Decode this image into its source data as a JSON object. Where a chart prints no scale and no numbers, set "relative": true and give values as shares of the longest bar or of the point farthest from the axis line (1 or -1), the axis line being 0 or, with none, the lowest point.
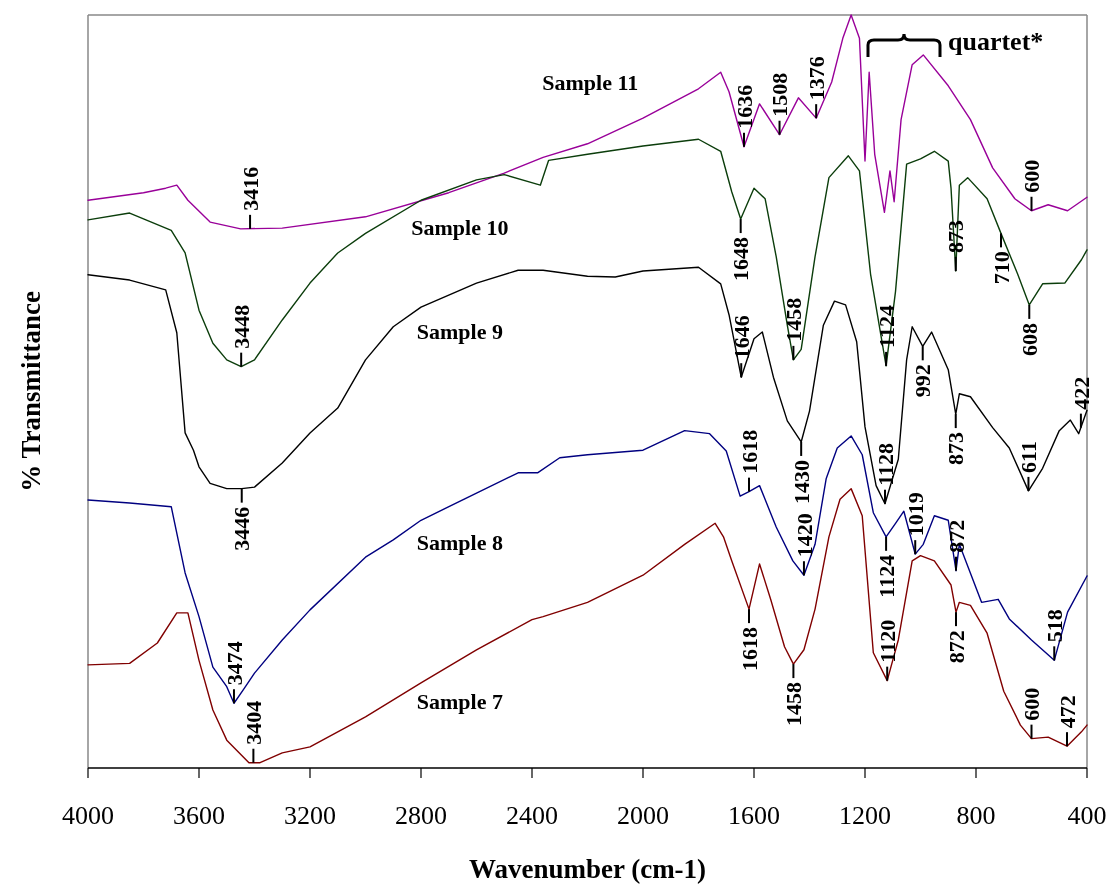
{
  "chart_data": {
    "type": "line",
    "relative": true,
    "xlabel": "Wavenumber (cm-1)",
    "ylabel": "% Transmittance",
    "xlim": [
      4000,
      400
    ],
    "xticks": [
      4000,
      3600,
      3200,
      2800,
      2400,
      2000,
      1600,
      1200,
      800,
      400
    ],
    "legend": false,
    "grid": false,
    "marker": "none",
    "line_style": "solid",
    "series": [
      {
        "name": "Sample 11",
        "color": "#990099",
        "x": [
          4000,
          3800,
          3720,
          3680,
          3640,
          3560,
          3450,
          3300,
          3000,
          2700,
          2500,
          2360,
          2200,
          2000,
          1800,
          1720,
          1690,
          1636,
          1580,
          1508,
          1440,
          1376,
          1320,
          1280,
          1250,
          1220,
          1200,
          1185,
          1165,
          1130,
          1110,
          1095,
          1070,
          1030,
          990,
          900,
          820,
          740,
          660,
          600,
          540,
          470,
          400
        ],
        "values": [
          0.754,
          0.764,
          0.77,
          0.774,
          0.754,
          0.725,
          0.716,
          0.717,
          0.732,
          0.764,
          0.79,
          0.811,
          0.829,
          0.863,
          0.902,
          0.924,
          0.898,
          0.825,
          0.882,
          0.841,
          0.89,
          0.863,
          0.911,
          0.969,
          1,
          0.969,
          0.806,
          0.924,
          0.815,
          0.738,
          0.793,
          0.752,
          0.861,
          0.934,
          0.947,
          0.906,
          0.861,
          0.797,
          0.756,
          0.74,
          0.748,
          0.74,
          0.758
        ]
      },
      {
        "name": "Sample 10",
        "color": "#0b3d0b",
        "x": [
          4000,
          3850,
          3700,
          3650,
          3600,
          3550,
          3500,
          3448,
          3400,
          3300,
          3200,
          3100,
          3000,
          2800,
          2600,
          2500,
          2370,
          2340,
          2200,
          2000,
          1800,
          1720,
          1680,
          1648,
          1600,
          1560,
          1520,
          1480,
          1458,
          1430,
          1380,
          1330,
          1260,
          1220,
          1180,
          1124,
          1090,
          1050,
          1000,
          950,
          900,
          890,
          873,
          860,
          830,
          760,
          710,
          650,
          608,
          560,
          480,
          420,
          400
        ],
        "values": [
          0.728,
          0.737,
          0.714,
          0.684,
          0.608,
          0.564,
          0.542,
          0.533,
          0.542,
          0.595,
          0.644,
          0.684,
          0.71,
          0.754,
          0.781,
          0.788,
          0.774,
          0.807,
          0.815,
          0.826,
          0.835,
          0.819,
          0.765,
          0.729,
          0.77,
          0.756,
          0.679,
          0.588,
          0.542,
          0.556,
          0.679,
          0.784,
          0.813,
          0.793,
          0.656,
          0.534,
          0.633,
          0.802,
          0.809,
          0.819,
          0.806,
          0.77,
          0.66,
          0.774,
          0.784,
          0.756,
          0.71,
          0.656,
          0.615,
          0.643,
          0.644,
          0.675,
          0.688
        ]
      },
      {
        "name": "Sample 9",
        "color": "#000000",
        "x": [
          4000,
          3850,
          3720,
          3680,
          3650,
          3620,
          3600,
          3560,
          3500,
          3446,
          3400,
          3300,
          3200,
          3100,
          3000,
          2900,
          2800,
          2600,
          2450,
          2360,
          2200,
          2100,
          2000,
          1800,
          1720,
          1690,
          1646,
          1600,
          1570,
          1530,
          1480,
          1430,
          1400,
          1350,
          1310,
          1270,
          1230,
          1200,
          1160,
          1128,
          1080,
          1050,
          1030,
          992,
          960,
          900,
          873,
          860,
          820,
          740,
          680,
          611,
          560,
          500,
          460,
          430,
          400
        ],
        "values": [
          0.655,
          0.648,
          0.635,
          0.578,
          0.445,
          0.422,
          0.4,
          0.378,
          0.371,
          0.371,
          0.373,
          0.405,
          0.445,
          0.478,
          0.542,
          0.586,
          0.612,
          0.644,
          0.661,
          0.661,
          0.653,
          0.652,
          0.66,
          0.665,
          0.643,
          0.602,
          0.519,
          0.57,
          0.579,
          0.519,
          0.461,
          0.433,
          0.474,
          0.588,
          0.62,
          0.615,
          0.566,
          0.453,
          0.375,
          0.351,
          0.41,
          0.542,
          0.586,
          0.56,
          0.579,
          0.529,
          0.47,
          0.497,
          0.493,
          0.452,
          0.425,
          0.368,
          0.398,
          0.448,
          0.462,
          0.444,
          0.475
        ]
      },
      {
        "name": "Sample 8",
        "color": "#000080",
        "x": [
          4000,
          3850,
          3700,
          3650,
          3600,
          3550,
          3500,
          3474,
          3440,
          3400,
          3300,
          3200,
          3000,
          2900,
          2800,
          2600,
          2450,
          2380,
          2300,
          2200,
          2000,
          1850,
          1760,
          1700,
          1650,
          1618,
          1580,
          1520,
          1460,
          1420,
          1380,
          1340,
          1300,
          1250,
          1210,
          1170,
          1124,
          1090,
          1060,
          1019,
          990,
          950,
          900,
          872,
          860,
          780,
          720,
          680,
          600,
          518,
          470,
          400
        ],
        "values": [
          0.356,
          0.352,
          0.347,
          0.259,
          0.201,
          0.134,
          0.108,
          0.086,
          0.104,
          0.126,
          0.17,
          0.21,
          0.28,
          0.303,
          0.329,
          0.365,
          0.392,
          0.392,
          0.412,
          0.416,
          0.422,
          0.448,
          0.444,
          0.421,
          0.361,
          0.367,
          0.375,
          0.32,
          0.275,
          0.256,
          0.297,
          0.384,
          0.425,
          0.441,
          0.416,
          0.339,
          0.307,
          0.325,
          0.341,
          0.284,
          0.297,
          0.335,
          0.329,
          0.262,
          0.297,
          0.22,
          0.224,
          0.198,
          0.17,
          0.143,
          0.207,
          0.255
        ]
      },
      {
        "name": "Sample 7",
        "color": "#800000",
        "x": [
          4000,
          3850,
          3750,
          3680,
          3640,
          3600,
          3550,
          3500,
          3420,
          3380,
          3300,
          3200,
          3000,
          2800,
          2600,
          2400,
          2360,
          2200,
          2000,
          1850,
          1740,
          1710,
          1680,
          1618,
          1580,
          1540,
          1490,
          1458,
          1420,
          1380,
          1330,
          1290,
          1250,
          1210,
          1170,
          1120,
          1080,
          1030,
          1000,
          950,
          890,
          872,
          860,
          820,
          760,
          700,
          640,
          600,
          540,
          472,
          420,
          400
        ],
        "values": [
          0.137,
          0.139,
          0.166,
          0.206,
          0.206,
          0.143,
          0.077,
          0.037,
          0.007,
          0.007,
          0.02,
          0.028,
          0.068,
          0.113,
          0.157,
          0.197,
          0.201,
          0.22,
          0.256,
          0.297,
          0.325,
          0.307,
          0.275,
          0.211,
          0.271,
          0.224,
          0.161,
          0.138,
          0.157,
          0.211,
          0.307,
          0.357,
          0.371,
          0.335,
          0.153,
          0.116,
          0.17,
          0.275,
          0.282,
          0.275,
          0.243,
          0.207,
          0.22,
          0.216,
          0.179,
          0.102,
          0.057,
          0.039,
          0.041,
          0.029,
          0.048,
          0.057
        ]
      }
    ],
    "annotations": [
      "quartet*",
      {
        "text": "1636",
        "x": 1636,
        "y": 0.825
      },
      {
        "text": "1508",
        "x": 1508,
        "y": 0.841
      },
      {
        "text": "1376",
        "x": 1376,
        "y": 0.863
      },
      {
        "text": "3416",
        "x": 3416,
        "y": 0.716
      },
      {
        "text": "1648",
        "x": 1648,
        "y": 0.729
      },
      {
        "text": "600",
        "x": 600,
        "y": 0.74
      },
      {
        "text": "3448",
        "x": 3448,
        "y": 0.533
      },
      {
        "text": "1646",
        "x": 1646,
        "y": 0.519
      },
      {
        "text": "1458",
        "x": 1458,
        "y": 0.542
      },
      {
        "text": "1124",
        "x": 1124,
        "y": 0.534
      },
      {
        "text": "873",
        "x": 873,
        "y": 0.66
      },
      {
        "text": "710",
        "x": 710,
        "y": 0.71
      },
      {
        "text": "3446",
        "x": 3446,
        "y": 0.371
      },
      {
        "text": "1430",
        "x": 1430,
        "y": 0.433
      },
      {
        "text": "992",
        "x": 992,
        "y": 0.56
      },
      {
        "text": "873",
        "x": 873,
        "y": 0.47
      },
      {
        "text": "608",
        "x": 608,
        "y": 0.615
      },
      {
        "text": "422",
        "x": 422,
        "y": 0.452
      },
      {
        "text": "1618",
        "x": 1618,
        "y": 0.367
      },
      {
        "text": "1128",
        "x": 1128,
        "y": 0.351
      },
      {
        "text": "611",
        "x": 611,
        "y": 0.368
      },
      {
        "text": "1420",
        "x": 1420,
        "y": 0.256
      },
      {
        "text": "1019",
        "x": 1019,
        "y": 0.284
      },
      {
        "text": "872",
        "x": 872,
        "y": 0.262
      },
      {
        "text": "1124",
        "x": 1124,
        "y": 0.307
      },
      {
        "text": "3474",
        "x": 3474,
        "y": 0.086
      },
      {
        "text": "518",
        "x": 518,
        "y": 0.143
      },
      {
        "text": "3404",
        "x": 3404,
        "y": 0.007
      },
      {
        "text": "1618",
        "x": 1618,
        "y": 0.211
      },
      {
        "text": "1458",
        "x": 1458,
        "y": 0.138
      },
      {
        "text": "1120",
        "x": 1120,
        "y": 0.116
      },
      {
        "text": "872",
        "x": 872,
        "y": 0.207
      },
      {
        "text": "600",
        "x": 600,
        "y": 0.039
      },
      {
        "text": "472",
        "x": 472,
        "y": 0.029
      }
    ]
  }
}
